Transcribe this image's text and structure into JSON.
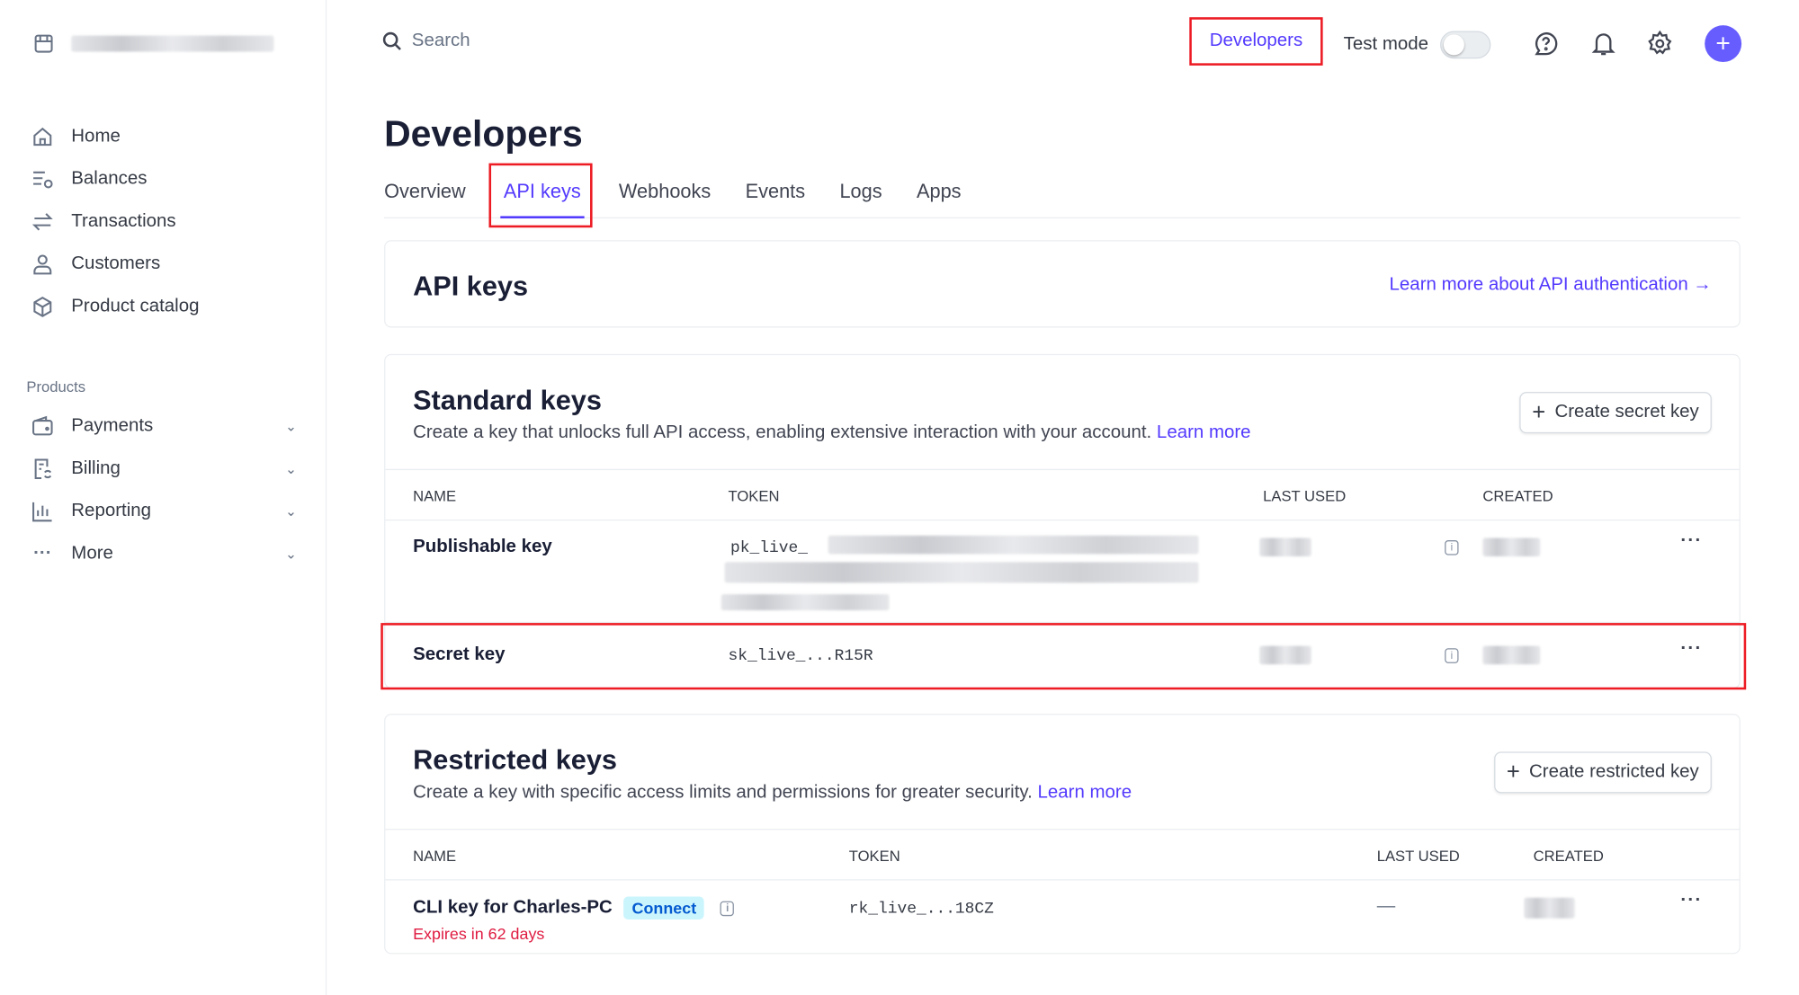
{
  "sidebar": {
    "account_name": "[redacted]",
    "items": [
      {
        "label": "Home",
        "icon": "home-icon"
      },
      {
        "label": "Balances",
        "icon": "balances-icon"
      },
      {
        "label": "Transactions",
        "icon": "transactions-icon"
      },
      {
        "label": "Customers",
        "icon": "customers-icon"
      },
      {
        "label": "Product catalog",
        "icon": "product-catalog-icon"
      }
    ],
    "section_label": "Products",
    "product_items": [
      {
        "label": "Payments",
        "icon": "wallet-icon"
      },
      {
        "label": "Billing",
        "icon": "billing-icon"
      },
      {
        "label": "Reporting",
        "icon": "chart-icon"
      },
      {
        "label": "More",
        "icon": "more-icon"
      }
    ]
  },
  "topbar": {
    "search_placeholder": "Search",
    "developers": "Developers",
    "test_mode": "Test mode",
    "test_mode_on": false
  },
  "page": {
    "title": "Developers",
    "tabs": [
      "Overview",
      "API keys",
      "Webhooks",
      "Events",
      "Logs",
      "Apps"
    ],
    "active_tab": "API keys"
  },
  "api_keys_card": {
    "title": "API keys",
    "link": "Learn more about API authentication →"
  },
  "standard": {
    "title": "Standard keys",
    "description": "Create a key that unlocks full API access, enabling extensive interaction with your account.",
    "learn_more": "Learn more",
    "button": "Create secret key",
    "columns": [
      "NAME",
      "TOKEN",
      "LAST USED",
      "CREATED"
    ],
    "rows": [
      {
        "name": "Publishable key",
        "token": "pk_live_"
      },
      {
        "name": "Secret key",
        "token": "sk_live_...R15R"
      }
    ]
  },
  "restricted": {
    "title": "Restricted keys",
    "description": "Create a key with specific access limits and permissions for greater security.",
    "learn_more": "Learn more",
    "button": "Create restricted key",
    "columns": [
      "NAME",
      "TOKEN",
      "LAST USED",
      "CREATED"
    ],
    "rows": [
      {
        "name": "CLI key for Charles-PC",
        "badge": "Connect",
        "expires": "Expires in 62 days",
        "token": "rk_live_...18CZ",
        "last_used": "—"
      }
    ]
  },
  "colors": {
    "accent": "#533afd",
    "highlight": "#ed1c24",
    "danger": "#df1b41"
  }
}
